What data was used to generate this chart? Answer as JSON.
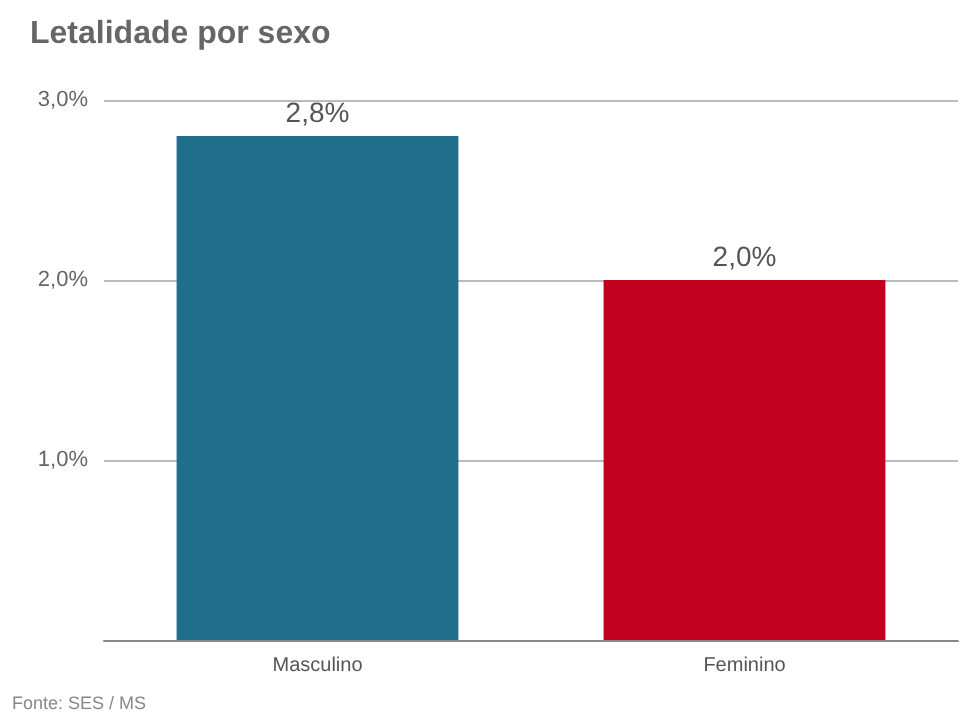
{
  "chart_data": {
    "type": "bar",
    "title": "Letalidade por sexo",
    "categories": [
      "Masculino",
      "Feminino"
    ],
    "values": [
      2.8,
      2.0
    ],
    "colors": [
      "#1f6e8c",
      "#c0001f"
    ],
    "value_labels": [
      "2,8%",
      "2,0%"
    ],
    "ylim": [
      0,
      3
    ],
    "yticks": [
      {
        "value": 0,
        "label": null
      },
      {
        "value": 1,
        "label": "1,0%"
      },
      {
        "value": 2,
        "label": "2,0%"
      },
      {
        "value": 3,
        "label": "3,0%"
      }
    ],
    "grid": "y",
    "annotations": [
      "Fonte: SES / MS"
    ]
  }
}
